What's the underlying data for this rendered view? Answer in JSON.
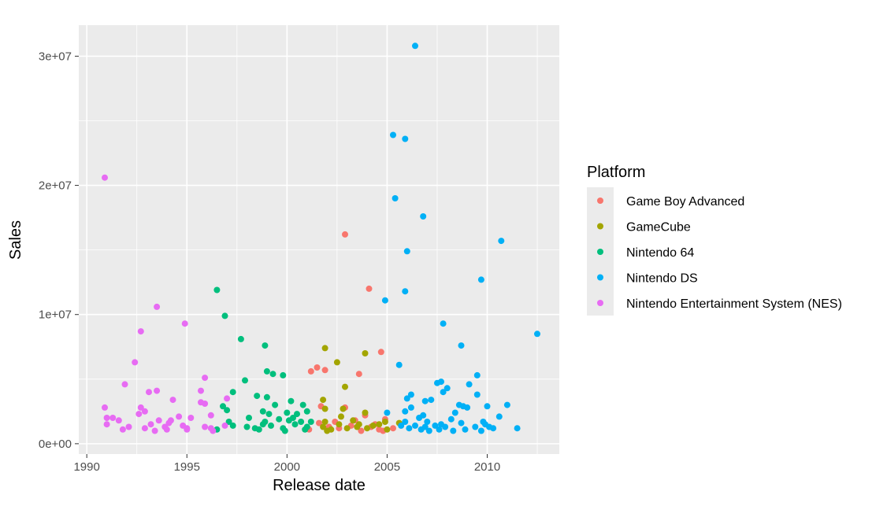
{
  "chart_data": {
    "type": "scatter",
    "xlabel": "Release date",
    "ylabel": "Sales",
    "xlim": [
      1989.6,
      2013.6
    ],
    "ylim": [
      -800000,
      32400000
    ],
    "x_ticks": [
      1990,
      1995,
      2000,
      2005,
      2010
    ],
    "x_tick_labels": [
      "1990",
      "1995",
      "2000",
      "2005",
      "2010"
    ],
    "y_ticks": [
      0,
      10000000,
      20000000,
      30000000
    ],
    "y_tick_labels": [
      "0e+00",
      "1e+07",
      "2e+07",
      "3e+07"
    ],
    "grid": true,
    "panel_background": "#ebebeb",
    "legend": {
      "title": "Platform",
      "position": "right"
    },
    "series": [
      {
        "name": "Game Boy Advanced",
        "color": "#f8766d",
        "points": [
          [
            2002.9,
            16200000
          ],
          [
            2004.1,
            12000000
          ],
          [
            2004.7,
            7100000
          ],
          [
            2001.5,
            5900000
          ],
          [
            2001.9,
            5700000
          ],
          [
            2003.6,
            5400000
          ],
          [
            2001.2,
            5600000
          ],
          [
            2001.7,
            2900000
          ],
          [
            2002.9,
            2800000
          ],
          [
            2003.9,
            2200000
          ],
          [
            2002.4,
            1700000
          ],
          [
            2003.4,
            1800000
          ],
          [
            2004.9,
            1900000
          ],
          [
            2004.4,
            1500000
          ],
          [
            2001.1,
            1100000
          ],
          [
            2002.6,
            1200000
          ],
          [
            2003.2,
            1400000
          ],
          [
            2004.6,
            1100000
          ],
          [
            2005.3,
            1200000
          ],
          [
            2002.1,
            1300000
          ],
          [
            2003.7,
            1000000
          ],
          [
            2004.2,
            1300000
          ],
          [
            2001.6,
            1600000
          ],
          [
            2004.8,
            1000000
          ]
        ]
      },
      {
        "name": "GameCube",
        "color": "#a3a500",
        "points": [
          [
            2001.9,
            7400000
          ],
          [
            2003.9,
            7000000
          ],
          [
            2002.5,
            6300000
          ],
          [
            2002.9,
            4400000
          ],
          [
            2001.8,
            3400000
          ],
          [
            2001.9,
            2700000
          ],
          [
            2002.8,
            2700000
          ],
          [
            2003.9,
            2400000
          ],
          [
            2002.7,
            2100000
          ],
          [
            2003.3,
            1800000
          ],
          [
            2001.9,
            1700000
          ],
          [
            2004.9,
            1700000
          ],
          [
            2005.6,
            1600000
          ],
          [
            2002.6,
            1500000
          ],
          [
            2003.6,
            1500000
          ],
          [
            2004.3,
            1400000
          ],
          [
            2001.8,
            1300000
          ],
          [
            2003.0,
            1200000
          ],
          [
            2004.0,
            1200000
          ],
          [
            2005.0,
            1100000
          ],
          [
            2002.2,
            1100000
          ],
          [
            2003.5,
            1300000
          ],
          [
            2002.0,
            1000000
          ],
          [
            2004.6,
            1500000
          ]
        ]
      },
      {
        "name": "Nintendo 64",
        "color": "#00bf7d",
        "points": [
          [
            1996.5,
            11900000
          ],
          [
            1996.9,
            9900000
          ],
          [
            1997.7,
            8100000
          ],
          [
            1998.9,
            7600000
          ],
          [
            1999.0,
            5600000
          ],
          [
            1999.3,
            5400000
          ],
          [
            1999.8,
            5300000
          ],
          [
            1997.3,
            4000000
          ],
          [
            1997.9,
            4900000
          ],
          [
            1996.8,
            2900000
          ],
          [
            1997.0,
            2600000
          ],
          [
            1998.5,
            3700000
          ],
          [
            1999.0,
            3600000
          ],
          [
            1999.4,
            3000000
          ],
          [
            2000.2,
            3300000
          ],
          [
            2000.8,
            3000000
          ],
          [
            1998.8,
            2500000
          ],
          [
            1999.1,
            2300000
          ],
          [
            2000.0,
            2400000
          ],
          [
            2000.5,
            2300000
          ],
          [
            2001.0,
            2500000
          ],
          [
            1998.1,
            2000000
          ],
          [
            1999.6,
            1900000
          ],
          [
            2000.3,
            2000000
          ],
          [
            2000.7,
            1700000
          ],
          [
            1997.1,
            1700000
          ],
          [
            1997.3,
            1400000
          ],
          [
            1998.0,
            1300000
          ],
          [
            1998.4,
            1200000
          ],
          [
            1998.8,
            1500000
          ],
          [
            1999.2,
            1400000
          ],
          [
            1999.8,
            1200000
          ],
          [
            2000.4,
            1500000
          ],
          [
            2001.0,
            1300000
          ],
          [
            2001.2,
            1700000
          ],
          [
            1996.5,
            1100000
          ],
          [
            1998.6,
            1100000
          ],
          [
            1999.9,
            1000000
          ],
          [
            2000.9,
            1100000
          ],
          [
            2000.1,
            1800000
          ],
          [
            1998.9,
            1700000
          ]
        ]
      },
      {
        "name": "Nintendo DS",
        "color": "#00b0f6",
        "points": [
          [
            2006.4,
            30800000
          ],
          [
            2005.3,
            23900000
          ],
          [
            2005.9,
            23600000
          ],
          [
            2005.4,
            19000000
          ],
          [
            2006.8,
            17600000
          ],
          [
            2010.7,
            15700000
          ],
          [
            2006.0,
            14900000
          ],
          [
            2009.7,
            12700000
          ],
          [
            2005.9,
            11800000
          ],
          [
            2004.9,
            11100000
          ],
          [
            2007.8,
            9300000
          ],
          [
            2012.5,
            8500000
          ],
          [
            2008.7,
            7600000
          ],
          [
            2005.6,
            6100000
          ],
          [
            2009.5,
            5300000
          ],
          [
            2007.5,
            4700000
          ],
          [
            2007.7,
            4800000
          ],
          [
            2008.0,
            4300000
          ],
          [
            2007.8,
            4000000
          ],
          [
            2009.1,
            4600000
          ],
          [
            2006.2,
            3800000
          ],
          [
            2006.0,
            3500000
          ],
          [
            2006.9,
            3300000
          ],
          [
            2007.2,
            3400000
          ],
          [
            2006.2,
            2800000
          ],
          [
            2008.6,
            3000000
          ],
          [
            2008.8,
            2900000
          ],
          [
            2009.0,
            2800000
          ],
          [
            2009.5,
            3800000
          ],
          [
            2010.0,
            2900000
          ],
          [
            2011.0,
            3000000
          ],
          [
            2008.4,
            2400000
          ],
          [
            2006.6,
            2000000
          ],
          [
            2005.0,
            2400000
          ],
          [
            2005.9,
            2500000
          ],
          [
            2006.8,
            2200000
          ],
          [
            2007.0,
            1700000
          ],
          [
            2007.4,
            1400000
          ],
          [
            2007.7,
            1500000
          ],
          [
            2008.2,
            1900000
          ],
          [
            2008.7,
            1600000
          ],
          [
            2009.4,
            1300000
          ],
          [
            2009.8,
            1700000
          ],
          [
            2010.1,
            1300000
          ],
          [
            2010.6,
            2100000
          ],
          [
            2006.1,
            1200000
          ],
          [
            2006.7,
            1100000
          ],
          [
            2007.1,
            1000000
          ],
          [
            2007.6,
            1100000
          ],
          [
            2007.9,
            1300000
          ],
          [
            2008.3,
            1000000
          ],
          [
            2008.9,
            1100000
          ],
          [
            2009.7,
            1000000
          ],
          [
            2010.3,
            1200000
          ],
          [
            2011.5,
            1200000
          ],
          [
            2006.4,
            1400000
          ],
          [
            2005.9,
            1700000
          ],
          [
            2009.9,
            1500000
          ],
          [
            2005.7,
            1400000
          ],
          [
            2006.9,
            1300000
          ]
        ]
      },
      {
        "name": "Nintendo Entertainment System (NES)",
        "color": "#e76bf3",
        "points": [
          [
            1990.9,
            20600000
          ],
          [
            1993.5,
            10600000
          ],
          [
            1992.7,
            8700000
          ],
          [
            1994.9,
            9300000
          ],
          [
            1992.4,
            6300000
          ],
          [
            1995.9,
            5100000
          ],
          [
            1991.9,
            4600000
          ],
          [
            1995.7,
            4100000
          ],
          [
            1993.1,
            4000000
          ],
          [
            1993.5,
            4100000
          ],
          [
            1994.3,
            3400000
          ],
          [
            1997.0,
            3500000
          ],
          [
            1995.7,
            3200000
          ],
          [
            1995.9,
            3100000
          ],
          [
            1992.7,
            2800000
          ],
          [
            1992.9,
            2500000
          ],
          [
            1990.9,
            2800000
          ],
          [
            1991.0,
            2000000
          ],
          [
            1991.3,
            2000000
          ],
          [
            1991.6,
            1800000
          ],
          [
            1992.6,
            2300000
          ],
          [
            1993.6,
            1800000
          ],
          [
            1994.2,
            1800000
          ],
          [
            1994.6,
            2100000
          ],
          [
            1995.2,
            2000000
          ],
          [
            1996.2,
            2200000
          ],
          [
            1991.0,
            1500000
          ],
          [
            1992.1,
            1300000
          ],
          [
            1992.9,
            1200000
          ],
          [
            1993.2,
            1500000
          ],
          [
            1993.9,
            1300000
          ],
          [
            1994.1,
            1600000
          ],
          [
            1994.8,
            1400000
          ],
          [
            1995.0,
            1200000
          ],
          [
            1995.9,
            1300000
          ],
          [
            1996.2,
            1200000
          ],
          [
            1996.9,
            1400000
          ],
          [
            1991.8,
            1100000
          ],
          [
            1993.4,
            1000000
          ],
          [
            1994.0,
            1100000
          ],
          [
            1995.0,
            1100000
          ],
          [
            1996.3,
            1000000
          ]
        ]
      }
    ]
  }
}
